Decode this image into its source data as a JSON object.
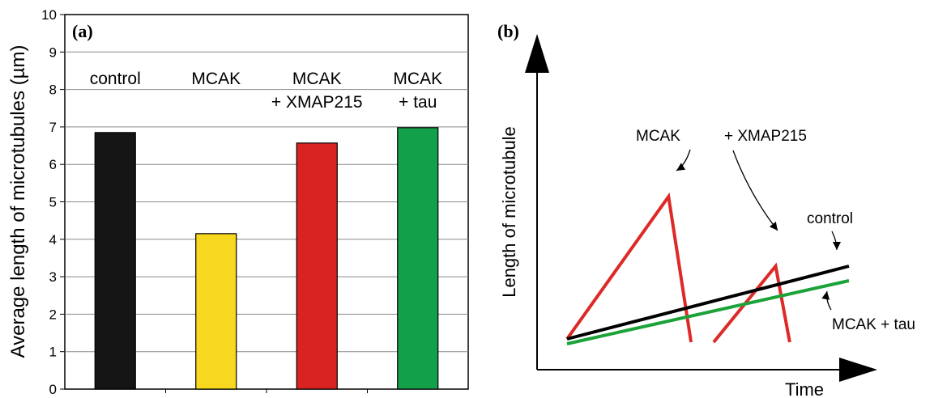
{
  "chart_data": [
    {
      "panel": "(a)",
      "type": "bar",
      "ylabel": "Average length of microtubules (µm)",
      "ylim": [
        0,
        10
      ],
      "yticks": [
        "0",
        "1",
        "2",
        "3",
        "4",
        "5",
        "6",
        "7",
        "8",
        "9",
        "10"
      ],
      "grid": true,
      "categories": [
        [
          "control"
        ],
        [
          "MCAK"
        ],
        [
          "MCAK",
          "+ XMAP215"
        ],
        [
          "MCAK",
          "+ tau"
        ]
      ],
      "values": [
        6.85,
        4.15,
        6.57,
        6.98
      ],
      "colors": [
        "#151515",
        "#f7d81e",
        "#d92323",
        "#12a04a"
      ]
    },
    {
      "panel": "(b)",
      "type": "line",
      "xlabel": "Time",
      "ylabel": "Length of microtubule",
      "series": [
        {
          "name": "control",
          "color": "#000000",
          "points": [
            [
              0.0,
              0.0
            ],
            [
              1.0,
              0.45
            ]
          ]
        },
        {
          "name": "MCAK + tau",
          "color": "#1ba33a",
          "points": [
            [
              0.0,
              -0.03
            ],
            [
              1.0,
              0.36
            ]
          ]
        },
        {
          "name": "MCAK",
          "color": "#de2a26",
          "points": [
            [
              0.0,
              0.0
            ],
            [
              0.36,
              0.88
            ],
            [
              0.44,
              -0.02
            ]
          ]
        },
        {
          "name": "+ XMAP215",
          "color": "#de2a26",
          "points": [
            [
              0.52,
              -0.02
            ],
            [
              0.74,
              0.45
            ],
            [
              0.79,
              -0.02
            ]
          ]
        }
      ],
      "annotations": [
        {
          "text": "MCAK",
          "target_series": "MCAK"
        },
        {
          "text": "+ XMAP215",
          "target_series": "+ XMAP215"
        },
        {
          "text": "control",
          "target_series": "control"
        },
        {
          "text": "MCAK + tau",
          "target_series": "MCAK + tau"
        }
      ]
    }
  ]
}
